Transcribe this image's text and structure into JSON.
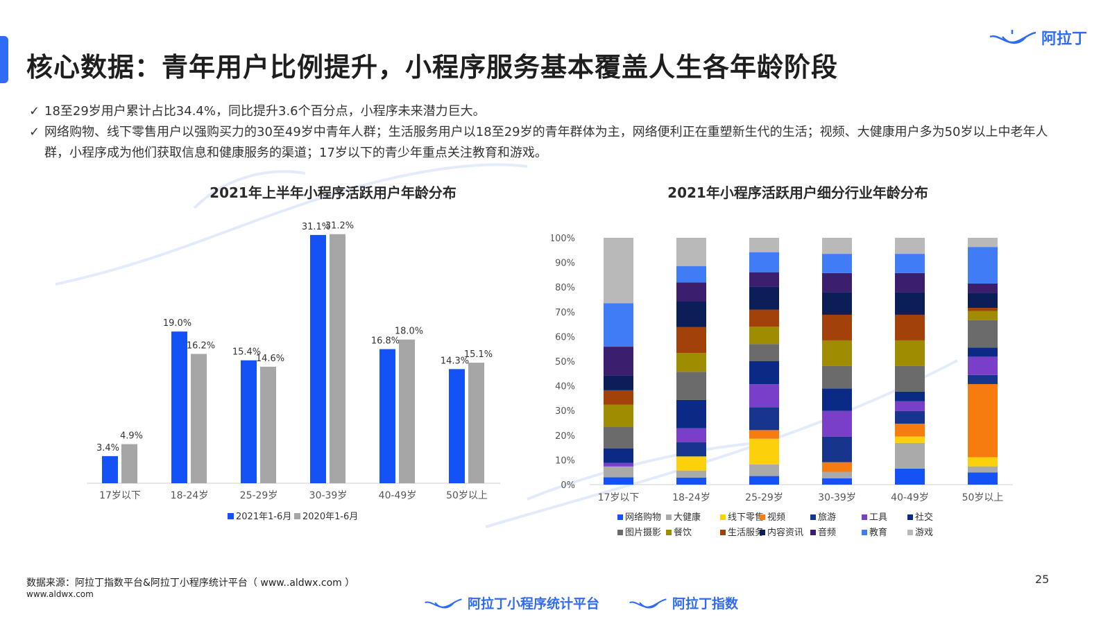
{
  "page": {
    "title": "核心数据：青年用户比例提升，小程序服务基本覆盖人生各年龄阶段",
    "brand": "阿拉丁",
    "page_number": "25",
    "bullets": [
      "18至29岁用户累计占比34.4%，同比提升3.6个百分点，小程序未来潜力巨大。",
      "网络购物、线下零售用户以强购买力的30至49岁中青年人群；生活服务用户以18至29岁的青年群体为主，网络便利正在重塑新生代的生活；视频、大健康用户多为50岁以上中老年人群，小程序成为他们获取信息和健康服务的渠道；17岁以下的青少年重点关注教育和游戏。"
    ],
    "footer": {
      "source": "数据来源：阿拉丁指数平台&阿拉丁小程序统计平台（ www..aldwx.com ）",
      "url": "www.aldwx.com",
      "brand_left": "阿拉丁小程序统计平台",
      "brand_right": "阿拉丁指数"
    },
    "colors": {
      "accent": "#2f6bf5"
    }
  },
  "chart_data": [
    {
      "type": "bar",
      "title": "2021年上半年小程序活跃用户年龄分布",
      "categories": [
        "17岁以下",
        "18-24岁",
        "25-29岁",
        "30-39岁",
        "40-49岁",
        "50岁以上"
      ],
      "series": [
        {
          "name": "2021年1-6月",
          "color": "#1452f5",
          "values": [
            3.4,
            19.0,
            15.4,
            31.1,
            16.8,
            14.3
          ]
        },
        {
          "name": "2020年1-6月",
          "color": "#a6a6a6",
          "values": [
            4.9,
            16.2,
            14.6,
            31.2,
            18.0,
            15.1
          ]
        }
      ],
      "data_labels": [
        [
          "3.4%",
          "19.0%",
          "15.4%",
          "31.1%",
          "16.8%",
          "14.3%"
        ],
        [
          "4.9%",
          "16.2%",
          "14.6%",
          "31.2%",
          "18.0%",
          "15.1%"
        ]
      ],
      "ylim": [
        0,
        33
      ],
      "xlabel": "",
      "ylabel": "",
      "legend": "bottom"
    },
    {
      "type": "bar",
      "stacked": true,
      "title": "2021年小程序活跃用户细分行业年龄分布",
      "categories": [
        "网络购物",
        "大健康",
        "线下零售",
        "视频",
        "旅游",
        "工具",
        "社交",
        "图片摄影",
        "餐饮",
        "生活服务",
        "内容资讯",
        "音频",
        "教育",
        "游戏"
      ],
      "age_groups": [
        "17岁以下",
        "18-24岁",
        "25-29岁",
        "30-39岁",
        "40-49岁",
        "50岁以上"
      ],
      "yticks": [
        "0%",
        "10%",
        "20%",
        "30%",
        "40%",
        "50%",
        "60%",
        "70%",
        "80%",
        "90%",
        "100%"
      ],
      "series": [
        {
          "name": "17岁以下",
          "color": "#1452f5",
          "values": [
            2,
            3,
            0,
            0,
            0,
            1,
            4,
            6,
            6,
            4,
            4,
            8,
            12,
            18
          ]
        },
        {
          "name": "18-24岁",
          "color": "#aaaaaa",
          "values": [
            3,
            3,
            6,
            0,
            6,
            6,
            12,
            12,
            8,
            11,
            11,
            8,
            7,
            12
          ]
        },
        {
          "name": "25-29岁",
          "color": "#fcd10b",
          "values": [
            3,
            4,
            9,
            3,
            8,
            8,
            8,
            6,
            6,
            6,
            8,
            5,
            7,
            5
          ]
        },
        {
          "name": "30-39岁",
          "color": "#f77c10",
          "values": [
            2,
            2,
            0,
            3,
            8,
            8,
            7,
            7,
            8,
            8,
            7,
            6,
            6,
            5
          ]
        },
        {
          "name": "40-49岁",
          "color": "#9e9e9e",
          "values": [
            5,
            8,
            2,
            4,
            4,
            3,
            3,
            8,
            8,
            8,
            7,
            6,
            6,
            5
          ]
        },
        {
          "name": "50岁以上",
          "color": "#0a46d8",
          "values": [
            4,
            2,
            3,
            24,
            3,
            6,
            3,
            9,
            3,
            1,
            5,
            3,
            12,
            3
          ]
        }
      ],
      "ylim": [
        0,
        100
      ],
      "legend": "bottom"
    }
  ]
}
